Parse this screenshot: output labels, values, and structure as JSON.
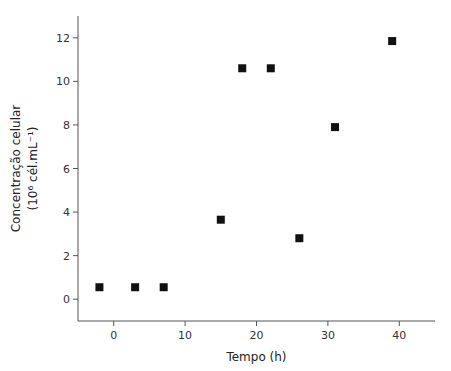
{
  "chart_data": {
    "type": "scatter",
    "x": [
      -2,
      3,
      7,
      15,
      18,
      22,
      26,
      31,
      39
    ],
    "y": [
      0.55,
      0.55,
      0.55,
      3.65,
      10.6,
      10.6,
      2.8,
      7.9,
      11.85
    ],
    "marker": "square",
    "color": "#111111",
    "xlabel": "Tempo (h)",
    "ylabel": "Concentração celular\n(10⁶ cél.mL⁻¹)",
    "xlim": [
      -5,
      45
    ],
    "ylim": [
      -1,
      13
    ],
    "xticks": [
      0,
      10,
      20,
      30,
      40
    ],
    "yticks": [
      0,
      2,
      4,
      6,
      8,
      10,
      12
    ],
    "grid": false
  }
}
